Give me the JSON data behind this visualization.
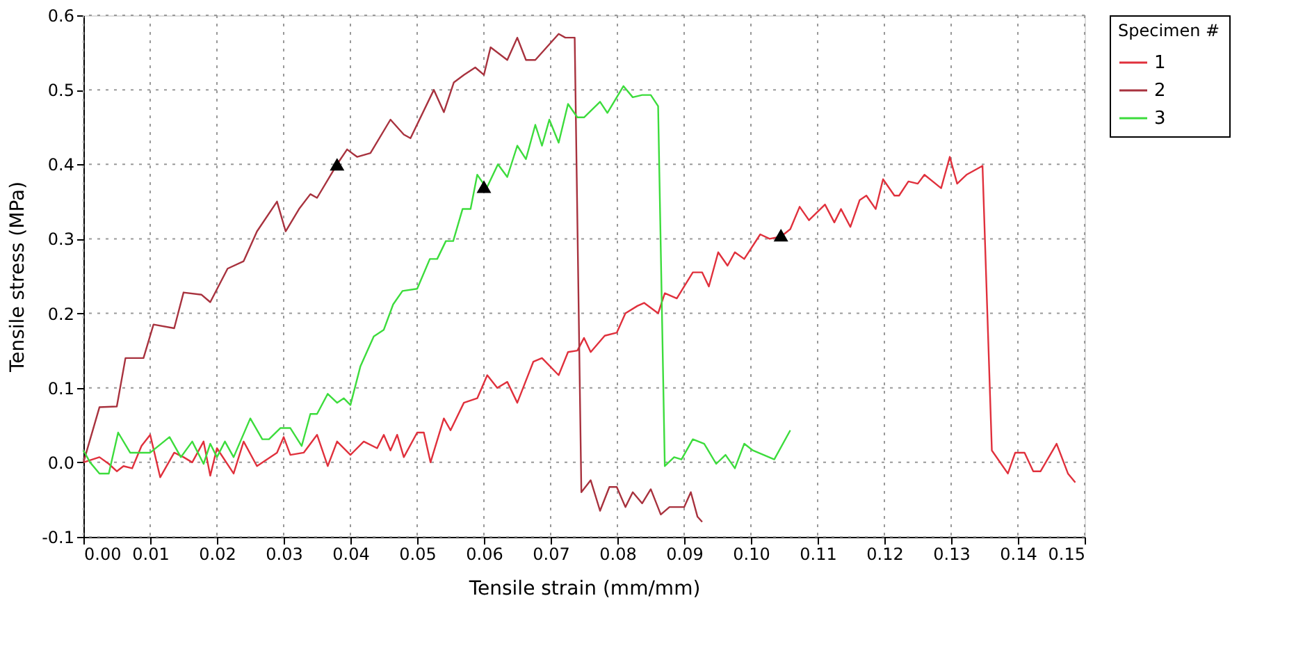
{
  "chart_data": {
    "type": "line",
    "xlabel": "Tensile strain (mm/mm)",
    "ylabel": "Tensile stress (MPa)",
    "legend_title": "Specimen #",
    "legend": "right",
    "grid": true,
    "line_style": "solid",
    "marker": "none",
    "xlim": [
      0,
      0.15
    ],
    "ylim": [
      -0.1,
      0.6
    ],
    "xticks": [
      {
        "value": 0,
        "label": "0.00"
      },
      {
        "value": 0.01,
        "label": "0.01"
      },
      {
        "value": 0.02,
        "label": "0.02"
      },
      {
        "value": 0.03,
        "label": "0.03"
      },
      {
        "value": 0.04,
        "label": "0.04"
      },
      {
        "value": 0.05,
        "label": "0.05"
      },
      {
        "value": 0.06,
        "label": "0.06"
      },
      {
        "value": 0.07,
        "label": "0.07"
      },
      {
        "value": 0.08,
        "label": "0.08"
      },
      {
        "value": 0.09,
        "label": "0.09"
      },
      {
        "value": 0.1,
        "label": "0.10"
      },
      {
        "value": 0.11,
        "label": "0.11"
      },
      {
        "value": 0.12,
        "label": "0.12"
      },
      {
        "value": 0.13,
        "label": "0.13"
      },
      {
        "value": 0.14,
        "label": "0.14"
      },
      {
        "value": 0.15,
        "label": "0.15"
      }
    ],
    "yticks": [
      {
        "value": -0.1,
        "label": "-0.1"
      },
      {
        "value": 0,
        "label": "0.0"
      },
      {
        "value": 0.1,
        "label": "0.1"
      },
      {
        "value": 0.2,
        "label": "0.2"
      },
      {
        "value": 0.3,
        "label": "0.3"
      },
      {
        "value": 0.4,
        "label": "0.4"
      },
      {
        "value": 0.5,
        "label": "0.5"
      },
      {
        "value": 0.6,
        "label": "0.6"
      }
    ],
    "series": [
      {
        "name": "1",
        "color": "#e0303c",
        "x": [
          0,
          0.0024,
          0.0038,
          0.005,
          0.006,
          0.0073,
          0.0087,
          0.01,
          0.0115,
          0.0136,
          0.015,
          0.0163,
          0.018,
          0.019,
          0.02,
          0.0225,
          0.024,
          0.026,
          0.029,
          0.03,
          0.031,
          0.033,
          0.035,
          0.0366,
          0.038,
          0.04,
          0.042,
          0.044,
          0.045,
          0.046,
          0.047,
          0.048,
          0.05,
          0.051,
          0.052,
          0.054,
          0.055,
          0.057,
          0.059,
          0.0605,
          0.062,
          0.0635,
          0.065,
          0.0674,
          0.0687,
          0.0712,
          0.0726,
          0.074,
          0.075,
          0.076,
          0.0781,
          0.0799,
          0.0812,
          0.083,
          0.084,
          0.0861,
          0.0871,
          0.0889,
          0.0913,
          0.0927,
          0.0937,
          0.0951,
          0.0965,
          0.0976,
          0.099,
          0.1014,
          0.1028,
          0.1045,
          0.1059,
          0.1073,
          0.1087,
          0.1111,
          0.1125,
          0.1135,
          0.1149,
          0.1163,
          0.1173,
          0.1187,
          0.1198,
          0.1215,
          0.1222,
          0.1236,
          0.125,
          0.126,
          0.1285,
          0.1298,
          0.1309,
          0.1323,
          0.1347,
          0.1361,
          0.1385,
          0.1396,
          0.141,
          0.1423,
          0.1434,
          0.1458,
          0.1475,
          0.1486
        ],
        "values": [
          0,
          0.007,
          -0.002,
          -0.012,
          -0.005,
          -0.008,
          0.022,
          0.037,
          -0.02,
          0.013,
          0.007,
          0,
          0.028,
          -0.018,
          0.019,
          -0.015,
          0.028,
          -0.005,
          0.013,
          0.034,
          0.01,
          0.013,
          0.037,
          -0.005,
          0.028,
          0.01,
          0.028,
          0.019,
          0.037,
          0.016,
          0.037,
          0.007,
          0.04,
          0.04,
          0,
          0.059,
          0.043,
          0.08,
          0.086,
          0.117,
          0.1,
          0.108,
          0.08,
          0.135,
          0.14,
          0.117,
          0.148,
          0.15,
          0.167,
          0.148,
          0.17,
          0.174,
          0.2,
          0.21,
          0.214,
          0.2,
          0.227,
          0.22,
          0.255,
          0.255,
          0.236,
          0.282,
          0.264,
          0.282,
          0.273,
          0.306,
          0.3,
          0.303,
          0.313,
          0.343,
          0.325,
          0.346,
          0.322,
          0.34,
          0.316,
          0.352,
          0.358,
          0.34,
          0.38,
          0.358,
          0.358,
          0.377,
          0.374,
          0.386,
          0.368,
          0.41,
          0.374,
          0.386,
          0.398,
          0.016,
          -0.015,
          0.013,
          0.013,
          -0.012,
          -0.012,
          0.025,
          -0.015,
          -0.027
        ]
      },
      {
        "name": "2",
        "color": "#a8323e",
        "x": [
          0,
          0.0024,
          0.005,
          0.0063,
          0.009,
          0.0105,
          0.0136,
          0.015,
          0.0177,
          0.019,
          0.0216,
          0.024,
          0.026,
          0.029,
          0.0303,
          0.0323,
          0.034,
          0.035,
          0.038,
          0.0395,
          0.041,
          0.043,
          0.046,
          0.048,
          0.049,
          0.0525,
          0.054,
          0.0555,
          0.057,
          0.0587,
          0.06,
          0.061,
          0.0635,
          0.065,
          0.0663,
          0.0677,
          0.0712,
          0.0722,
          0.0736,
          0.0746,
          0.076,
          0.0774,
          0.0788,
          0.0799,
          0.0812,
          0.0823,
          0.0837,
          0.085,
          0.0865,
          0.0878,
          0.09,
          0.091,
          0.092,
          0.0927
        ],
        "values": [
          0,
          0.074,
          0.075,
          0.14,
          0.14,
          0.185,
          0.18,
          0.228,
          0.225,
          0.215,
          0.26,
          0.27,
          0.31,
          0.35,
          0.31,
          0.34,
          0.36,
          0.355,
          0.4,
          0.42,
          0.41,
          0.415,
          0.46,
          0.44,
          0.435,
          0.5,
          0.47,
          0.51,
          0.52,
          0.53,
          0.52,
          0.557,
          0.54,
          0.57,
          0.54,
          0.54,
          0.575,
          0.57,
          0.57,
          -0.04,
          -0.024,
          -0.065,
          -0.033,
          -0.033,
          -0.06,
          -0.04,
          -0.055,
          -0.036,
          -0.07,
          -0.06,
          -0.06,
          -0.04,
          -0.073,
          -0.08
        ]
      },
      {
        "name": "3",
        "color": "#3cdc3c",
        "x": [
          0,
          0.001,
          0.0024,
          0.0038,
          0.0052,
          0.007,
          0.0087,
          0.01,
          0.0129,
          0.0146,
          0.0163,
          0.018,
          0.019,
          0.02,
          0.0212,
          0.0225,
          0.025,
          0.0268,
          0.0278,
          0.0295,
          0.031,
          0.0327,
          0.034,
          0.035,
          0.0366,
          0.038,
          0.039,
          0.04,
          0.0415,
          0.0435,
          0.045,
          0.0464,
          0.0478,
          0.05,
          0.0519,
          0.053,
          0.0543,
          0.0554,
          0.0568,
          0.058,
          0.059,
          0.0604,
          0.0621,
          0.0635,
          0.065,
          0.0663,
          0.0677,
          0.0687,
          0.0698,
          0.0712,
          0.0726,
          0.074,
          0.075,
          0.0774,
          0.0785,
          0.0809,
          0.0823,
          0.0837,
          0.085,
          0.0861,
          0.0871,
          0.0885,
          0.0896,
          0.0913,
          0.093,
          0.0948,
          0.0962,
          0.0976,
          0.099,
          0.1003,
          0.1035,
          0.1059
        ],
        "values": [
          0.016,
          0,
          -0.015,
          -0.015,
          0.04,
          0.013,
          0.013,
          0.013,
          0.034,
          0.007,
          0.028,
          -0.002,
          0.025,
          0.007,
          0.028,
          0.007,
          0.059,
          0.031,
          0.031,
          0.046,
          0.046,
          0.022,
          0.065,
          0.065,
          0.092,
          0.08,
          0.086,
          0.077,
          0.129,
          0.169,
          0.178,
          0.212,
          0.23,
          0.233,
          0.273,
          0.273,
          0.297,
          0.297,
          0.34,
          0.34,
          0.386,
          0.368,
          0.4,
          0.383,
          0.425,
          0.407,
          0.453,
          0.425,
          0.46,
          0.429,
          0.481,
          0.463,
          0.463,
          0.484,
          0.469,
          0.505,
          0.49,
          0.493,
          0.493,
          0.478,
          -0.005,
          0.007,
          0.004,
          0.031,
          0.025,
          -0.002,
          0.01,
          -0.008,
          0.025,
          0.016,
          0.004,
          0.043
        ]
      },
      {
        "type": "scatter",
        "marker": "triangle",
        "color": "#000000",
        "x": [
          0.038,
          0.06,
          0.1045
        ],
        "values": [
          0.4,
          0.37,
          0.305
        ]
      }
    ]
  }
}
